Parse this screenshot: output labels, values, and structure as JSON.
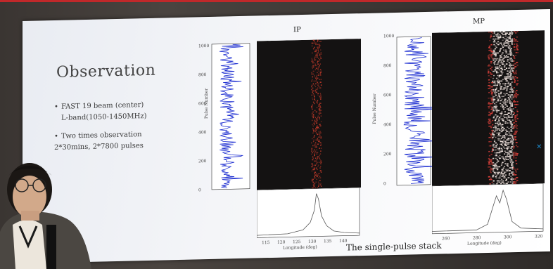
{
  "slide": {
    "title": "Observation",
    "bullets": [
      {
        "dot": "•",
        "line1": "FAST 19 beam (center)",
        "line2": "L-band(1050-1450MHz)"
      },
      {
        "dot": "•",
        "line1": "Two times observation",
        "line2": "2*30mins, 2*7800 pulses"
      }
    ],
    "caption": "The single-pulse stack",
    "panels": [
      {
        "title": "IP",
        "ylabel": "Pulse Number",
        "xlabel": "Longitude (deg)",
        "yticks": [
          "1000",
          "800",
          "600",
          "400",
          "200",
          "0"
        ],
        "xticks": [
          "115",
          "120",
          "125",
          "130",
          "135",
          "140"
        ]
      },
      {
        "title": "MP",
        "ylabel": "Pulse Number",
        "xlabel": "Longitude (deg)",
        "yticks": [
          "1000",
          "800",
          "600",
          "400",
          "200",
          "0"
        ],
        "xticks": [
          "260",
          "280",
          "300",
          "320"
        ]
      }
    ]
  },
  "colors": {
    "trace": "#1a2bd0",
    "stack_bg": "#141212",
    "ip_stripe": "#c23a2a",
    "mp_stripe": "#f3e6e0",
    "mp_edge": "#d8403a"
  }
}
